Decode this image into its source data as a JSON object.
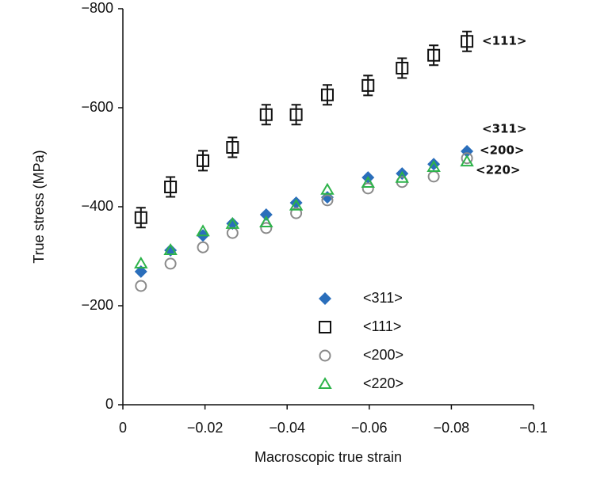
{
  "chart_data": {
    "type": "scatter",
    "xlabel": "Macroscopic true strain",
    "ylabel": "True stress (MPa)",
    "xlim": [
      0,
      -0.1
    ],
    "ylim": [
      0,
      -800
    ],
    "xticks": [
      0,
      {
        "value": -0.02,
        "label": "−0.02"
      },
      {
        "value": -0.04,
        "label": "−0.04"
      },
      {
        "value": -0.06,
        "label": "−0.06"
      },
      {
        "value": -0.08,
        "label": "−0.08"
      },
      {
        "value": -0.1,
        "label": "−0.1"
      }
    ],
    "yticks": [
      0,
      {
        "value": -200,
        "label": "−200"
      },
      {
        "value": -400,
        "label": "−400"
      },
      {
        "value": -600,
        "label": "−600"
      },
      {
        "value": -800,
        "label": "−800"
      }
    ],
    "x": [
      -0.0044,
      -0.0116,
      -0.0195,
      -0.0267,
      -0.0349,
      -0.0422,
      -0.0498,
      -0.0597,
      -0.068,
      -0.0757,
      -0.0838
    ],
    "series": [
      {
        "name": "<311>",
        "color": "#2a6ebb",
        "marker": "diamond",
        "values": [
          -269,
          -312,
          -342,
          -366,
          -384,
          -408,
          -419,
          -459,
          -467,
          -486,
          -512
        ]
      },
      {
        "name": "<111>",
        "color": "#111111",
        "marker": "square",
        "values": [
          -378,
          -440,
          -493,
          -520,
          -586,
          -586,
          -626,
          -645,
          -680,
          -706,
          -734
        ],
        "errors": [
          20,
          20,
          20,
          20,
          20,
          20,
          20,
          20,
          20,
          20,
          20
        ]
      },
      {
        "name": "<200>",
        "color": "#8a8a8a",
        "marker": "circle",
        "values": [
          -240,
          -285,
          -318,
          -347,
          -357,
          -387,
          -413,
          -437,
          -450,
          -461,
          -498
        ]
      },
      {
        "name": "<220>",
        "color": "#2db34a",
        "marker": "triangle",
        "values": [
          -285,
          -312,
          -350,
          -365,
          -368,
          -402,
          -434,
          -448,
          -458,
          -480,
          -491
        ]
      }
    ],
    "annotations": [
      "<111>",
      "<311>",
      "<200>",
      "<220>"
    ]
  }
}
